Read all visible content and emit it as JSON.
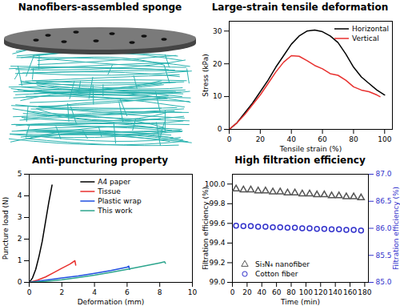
{
  "chart_data": [
    {
      "type": "diagram",
      "title": "Nanofibers-assembled sponge"
    },
    {
      "type": "line",
      "title": "Large-strain tensile deformation",
      "x_label": "Tensile strain (%)",
      "y_label": "Stress (kPa)",
      "xlim": [
        0,
        105
      ],
      "ylim": [
        0,
        33
      ],
      "xticks": [
        0,
        20,
        40,
        60,
        80,
        100
      ],
      "yticks": [
        0,
        10,
        20,
        30
      ],
      "legend": "top-right",
      "series": [
        {
          "name": "Horizontal",
          "color": "#000000",
          "x": [
            0,
            5,
            10,
            15,
            20,
            25,
            30,
            35,
            40,
            45,
            50,
            55,
            60,
            65,
            70,
            75,
            80,
            85,
            90,
            95,
            100
          ],
          "values": [
            0,
            2,
            5,
            8,
            11.5,
            15,
            19,
            22.5,
            26,
            28.5,
            30,
            30.3,
            29.8,
            28.5,
            26.5,
            23,
            19,
            16,
            14,
            12,
            10.5
          ]
        },
        {
          "name": "Vertical",
          "color": "#e8312f",
          "x": [
            0,
            5,
            10,
            15,
            20,
            25,
            30,
            35,
            40,
            45,
            50,
            55,
            60,
            65,
            70,
            75,
            80,
            85,
            90,
            95,
            97
          ],
          "values": [
            0,
            2,
            4.5,
            7.5,
            10.5,
            14,
            17.5,
            20.5,
            22.5,
            22.3,
            21,
            19.5,
            18.5,
            17,
            16.5,
            15,
            13,
            12,
            11.5,
            10.5,
            10
          ]
        }
      ]
    },
    {
      "type": "line",
      "title": "Anti-puncturing property",
      "x_label": "Deformation (mm)",
      "y_label": "Puncture load (N)",
      "xlim": [
        0,
        10
      ],
      "ylim": [
        0,
        5
      ],
      "xticks": [
        0,
        2,
        4,
        6,
        8,
        10
      ],
      "yticks": [
        0,
        1,
        2,
        3,
        4,
        5
      ],
      "legend": "top",
      "series": [
        {
          "name": "A4 paper",
          "color": "#000000",
          "x": [
            0,
            0.2,
            0.4,
            0.6,
            0.8,
            1.0,
            1.2,
            1.4
          ],
          "values": [
            0,
            0.2,
            0.6,
            1.2,
            1.9,
            2.8,
            3.7,
            4.5
          ]
        },
        {
          "name": "Tissue",
          "color": "#e8312f",
          "x": [
            0,
            0.5,
            1.0,
            1.5,
            2.0,
            2.5,
            2.8,
            2.85
          ],
          "values": [
            0,
            0.1,
            0.25,
            0.45,
            0.65,
            0.85,
            1.0,
            0.8
          ]
        },
        {
          "name": "Plastic wrap",
          "color": "#1f4fe0",
          "x": [
            0,
            1,
            2,
            3,
            4,
            5,
            6,
            6.1,
            6.15
          ],
          "values": [
            0,
            0.1,
            0.2,
            0.3,
            0.42,
            0.55,
            0.7,
            0.75,
            0.6
          ]
        },
        {
          "name": "This work",
          "color": "#2ca58d",
          "x": [
            0,
            1,
            2,
            3,
            4,
            5,
            6,
            7,
            8,
            8.3,
            8.35
          ],
          "values": [
            0,
            0.05,
            0.12,
            0.22,
            0.33,
            0.46,
            0.6,
            0.75,
            0.9,
            0.95,
            0.88
          ]
        }
      ]
    },
    {
      "type": "scatter",
      "title": "High filtration efficiency",
      "x_label": "Time (min)",
      "y_label": "Filtration efficiency (%)",
      "y2_label": "Filtration efficiency (%)",
      "xlim": [
        0,
        185
      ],
      "ylim": [
        99.0,
        100.1
      ],
      "y2lim": [
        85.0,
        87.0
      ],
      "xticks": [
        0,
        20,
        40,
        60,
        80,
        100,
        120,
        140,
        160,
        180
      ],
      "yticks": [
        {
          "value": 99.0,
          "label": "99.0"
        },
        99.2,
        99.4,
        99.6,
        99.8,
        {
          "value": 100.0,
          "label": "100.0"
        }
      ],
      "y2ticks": [
        {
          "value": 85.0,
          "label": "85.0"
        },
        85.5,
        {
          "value": 86.0,
          "label": "86.0"
        },
        86.5,
        {
          "value": 87.0,
          "label": "87.0"
        }
      ],
      "legend": "bottom-left",
      "series": [
        {
          "name": "Si₃N₄ nanofiber",
          "color": "#555555",
          "marker": "triangle",
          "x": [
            5,
            15,
            25,
            35,
            45,
            55,
            65,
            75,
            85,
            95,
            105,
            115,
            125,
            135,
            145,
            155,
            165,
            175
          ],
          "values": [
            99.95,
            99.94,
            99.94,
            99.93,
            99.93,
            99.92,
            99.92,
            99.91,
            99.91,
            99.9,
            99.9,
            99.89,
            99.89,
            99.88,
            99.88,
            99.87,
            99.87,
            99.86
          ]
        },
        {
          "name": "Cotton fiber",
          "color": "#3333cc",
          "marker": "circle",
          "axis": "y2",
          "x": [
            5,
            15,
            25,
            35,
            45,
            55,
            65,
            75,
            85,
            95,
            105,
            115,
            125,
            135,
            145,
            155,
            165,
            175
          ],
          "values": [
            86.05,
            86.04,
            86.04,
            86.03,
            86.03,
            86.02,
            86.02,
            86.01,
            86.01,
            86.0,
            86.0,
            85.99,
            85.99,
            85.98,
            85.98,
            85.97,
            85.97,
            85.96
          ]
        }
      ]
    }
  ]
}
